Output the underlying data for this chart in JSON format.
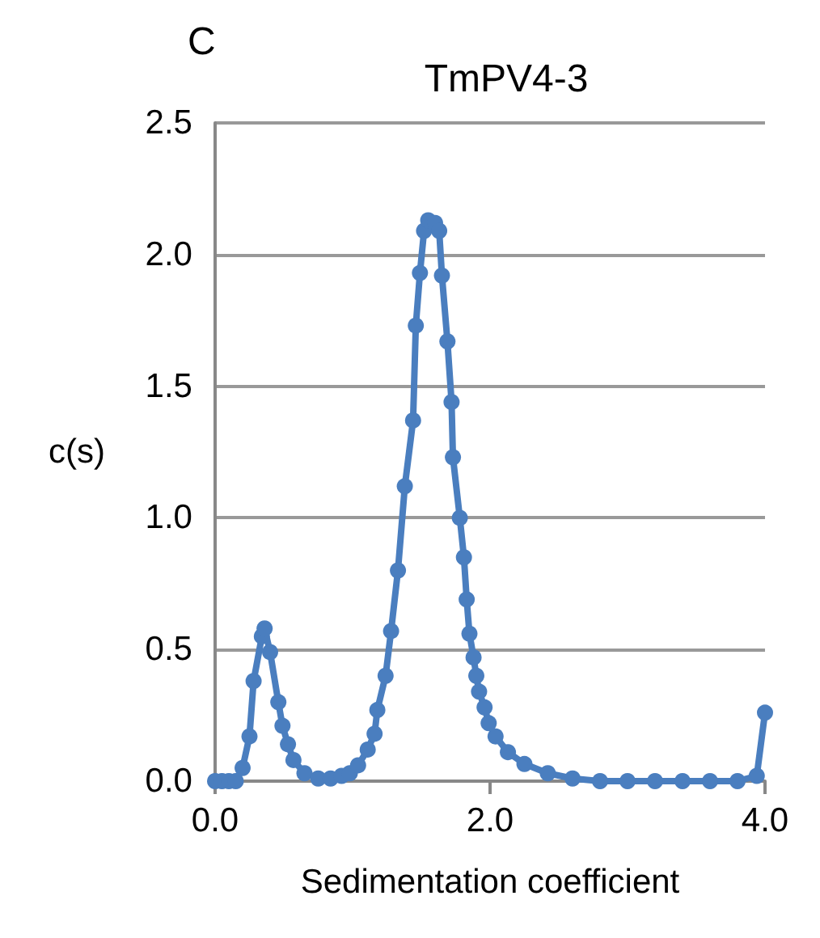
{
  "chart_data": {
    "type": "line",
    "title": "TmPV4-3",
    "xlabel": "Sedimentation coefficient",
    "ylabel": "c(s)",
    "annotations": [
      "C"
    ],
    "x": [
      0,
      0.05,
      0.1,
      0.15,
      0.2,
      0.25,
      0.28,
      0.34,
      0.36,
      0.4,
      0.46,
      0.49,
      0.53,
      0.57,
      0.65,
      0.75,
      0.84,
      0.92,
      0.98,
      1.04,
      1.11,
      1.16,
      1.18,
      1.24,
      1.28,
      1.33,
      1.38,
      1.44,
      1.46,
      1.49,
      1.52,
      1.55,
      1.6,
      1.63,
      1.65,
      1.69,
      1.72,
      1.73,
      1.78,
      1.81,
      1.83,
      1.85,
      1.88,
      1.9,
      1.92,
      1.96,
      1.99,
      2.04,
      2.13,
      2.25,
      2.42,
      2.6,
      2.8,
      3.0,
      3.2,
      3.4,
      3.6,
      3.8,
      3.94,
      4.0
    ],
    "series": [
      {
        "color": "#4a7ebf",
        "values": [
          0,
          0,
          0,
          0,
          0.05,
          0.17,
          0.38,
          0.55,
          0.58,
          0.49,
          0.3,
          0.21,
          0.14,
          0.08,
          0.03,
          0.01,
          0.01,
          0.02,
          0.03,
          0.06,
          0.12,
          0.18,
          0.27,
          0.4,
          0.57,
          0.8,
          1.12,
          1.37,
          1.73,
          1.93,
          2.09,
          2.13,
          2.12,
          2.09,
          1.92,
          1.67,
          1.44,
          1.23,
          1,
          0.85,
          0.69,
          0.56,
          0.47,
          0.4,
          0.34,
          0.28,
          0.22,
          0.17,
          0.11,
          0.065,
          0.03,
          0.01,
          0,
          0,
          0,
          0,
          0,
          0,
          0.02,
          0.26
        ]
      }
    ],
    "xlim": [
      0,
      4
    ],
    "xticks": [
      {
        "value": 0,
        "label": "0.0"
      },
      {
        "value": 2,
        "label": "2.0"
      },
      {
        "value": 4,
        "label": "4.0"
      }
    ],
    "ylim": [
      0,
      2.5
    ],
    "yticks": [
      {
        "value": 0,
        "label": "0.0"
      },
      {
        "value": 0.5,
        "label": "0.5"
      },
      {
        "value": 1,
        "label": "1.0"
      },
      {
        "value": 1.5,
        "label": "1.5"
      },
      {
        "value": 2,
        "label": "2.0"
      },
      {
        "value": 2.5,
        "label": "2.5"
      }
    ],
    "grid": "y",
    "marker": "circle",
    "line_style": "solid"
  }
}
